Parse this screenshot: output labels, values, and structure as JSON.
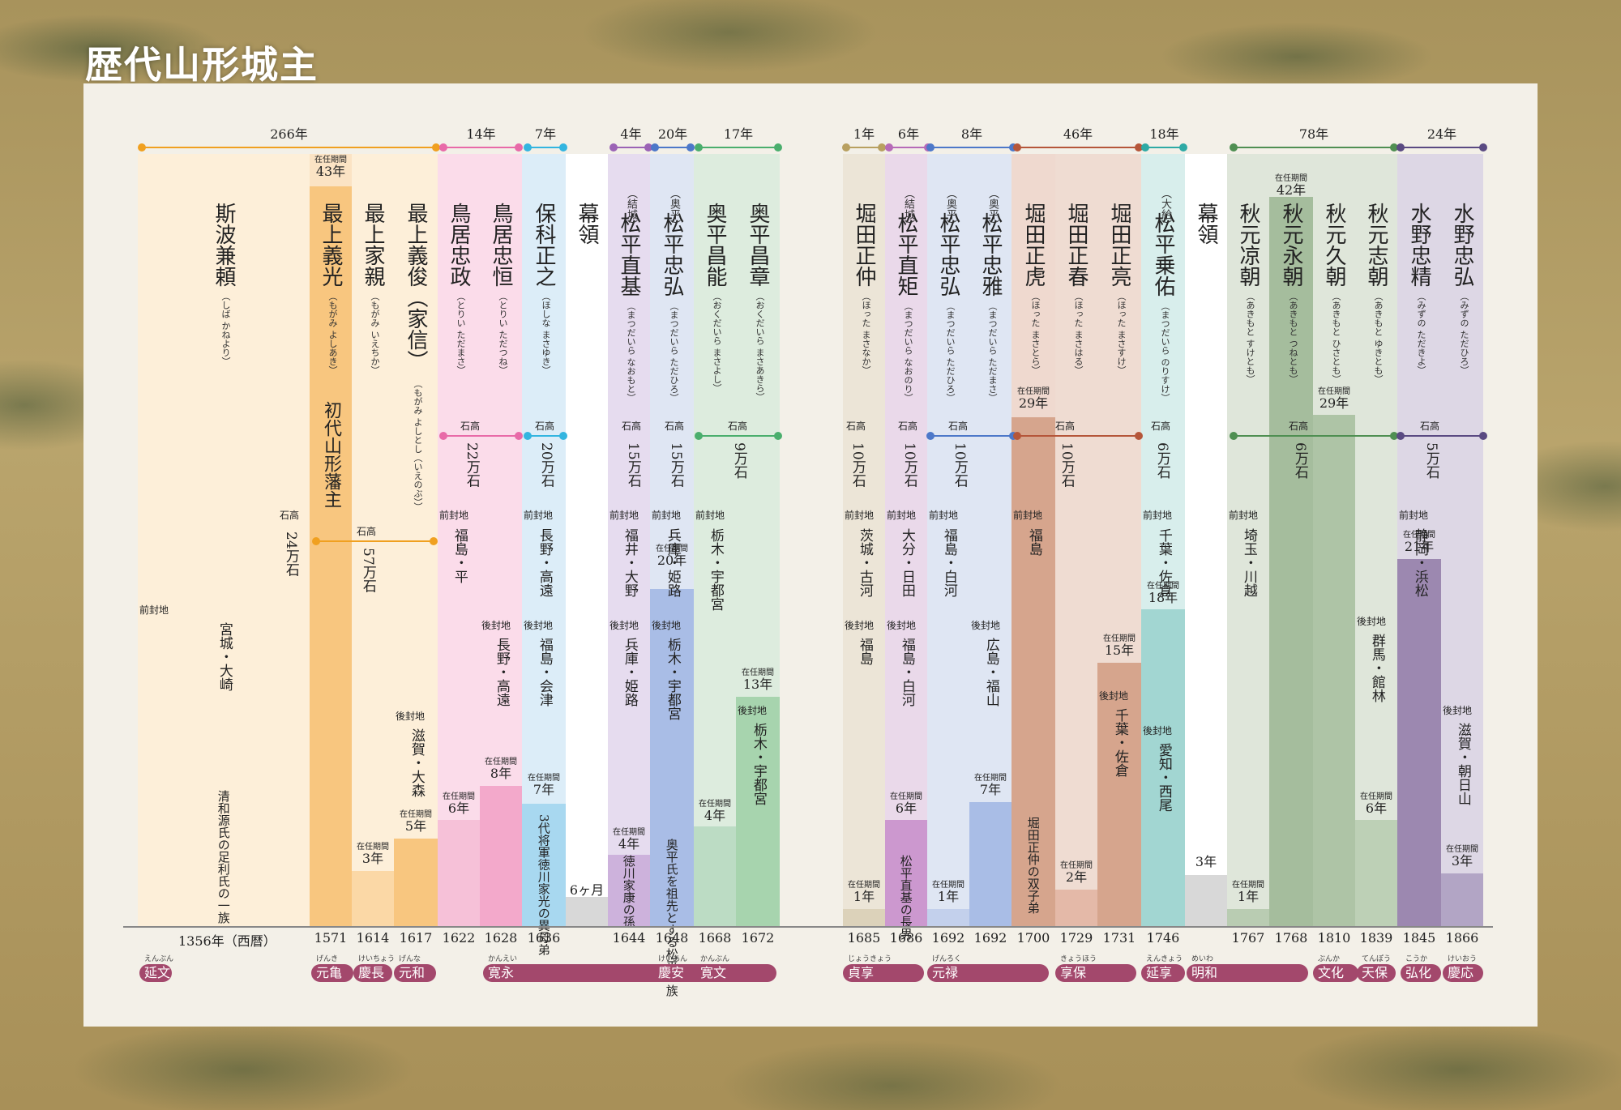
{
  "title": "歴代山形城主",
  "groups": [
    {
      "label": "266年",
      "color": "#f0a020"
    },
    {
      "label": "14年",
      "color": "#e86aa8"
    },
    {
      "label": "7年",
      "color": "#33b5e0"
    },
    {
      "label": "4年",
      "color": "#9b63b5"
    },
    {
      "label": "20年",
      "color": "#4d78c9"
    },
    {
      "label": "17年",
      "color": "#4aae6d"
    },
    {
      "label": "1年",
      "color": "#b8a060"
    },
    {
      "label": "6年",
      "color": "#b66bb8"
    },
    {
      "label": "8年",
      "color": "#4d78c9"
    },
    {
      "label": "46年",
      "color": "#b5563a"
    },
    {
      "label": "18年",
      "color": "#2eaaa5"
    },
    {
      "label": "78年",
      "color": "#4f8f52"
    },
    {
      "label": "24年",
      "color": "#5a4a82"
    }
  ],
  "lords": [
    {
      "name": "斯波兼頼",
      "reading": "（しば かねより）",
      "year": "1356年（西暦）",
      "prev_label": "前封地",
      "prev": "宮城・大崎",
      "note": "清和源氏の足利氏の一族"
    },
    {
      "name": "最上義光",
      "reading": "（もがみ よしあき）",
      "extra": "初代山形藩主",
      "tenure_label": "在任期間",
      "tenure": "43年",
      "year": "1571"
    },
    {
      "name": "最上家親",
      "reading": "（もがみ いえちか）",
      "tenure_label": "在任期間",
      "tenure": "3年",
      "year": "1614"
    },
    {
      "name": "最上義俊（家信）",
      "reading": "（もがみ よしとし（いえのぶ））",
      "tenure_label": "在任期間",
      "tenure": "5年",
      "year": "1617",
      "next_label": "後封地",
      "next": "滋賀・大森"
    },
    {
      "name": "鳥居忠政",
      "reading": "（とりい ただまさ）",
      "tenure_label": "在任期間",
      "tenure": "6年",
      "year": "1622",
      "prev_label": "前封地",
      "prev": "福島・平"
    },
    {
      "name": "鳥居忠恒",
      "reading": "（とりい ただつね）",
      "tenure_label": "在任期間",
      "tenure": "8年",
      "year": "1628",
      "next_label": "後封地",
      "next": "長野・高遠"
    },
    {
      "name": "保科正之",
      "reading": "（ほしな まさゆき）",
      "tenure_label": "在任期間",
      "tenure": "7年",
      "year": "1636",
      "prev_label": "前封地",
      "prev": "長野・高遠",
      "next_label": "後封地",
      "next": "福島・会津",
      "note": "3代将軍徳川家光の異母弟"
    },
    {
      "name": "幕領",
      "tenure": "6ヶ月"
    },
    {
      "name": "松平直基",
      "clan": "（結城）",
      "reading": "（まつだいら なおもと）",
      "tenure_label": "在任期間",
      "tenure": "4年",
      "year": "1644",
      "prev_label": "前封地",
      "prev": "福井・大野",
      "next_label": "後封地",
      "next": "兵庫・姫路",
      "note": "徳川家康の孫"
    },
    {
      "name": "松平忠弘",
      "clan": "（奥平）",
      "reading": "（まつだいら ただひろ）",
      "tenure_label": "在任期間",
      "tenure": "20年",
      "year": "1648",
      "prev_label": "前封地",
      "prev": "兵庫・姫路",
      "next_label": "後封地",
      "next": "栃木・宇都宮",
      "note": "奥平氏を祖先とする松平一族"
    },
    {
      "name": "奥平昌能",
      "reading": "（おくだいら まさよし）",
      "tenure_label": "在任期間",
      "tenure": "4年",
      "year": "1668",
      "prev_label": "前封地",
      "prev": "栃木・宇都宮"
    },
    {
      "name": "奥平昌章",
      "reading": "（おくだいら まさあきら）",
      "tenure_label": "在任期間",
      "tenure": "13年",
      "year": "1672",
      "next_label": "後封地",
      "next": "栃木・宇都宮"
    },
    {
      "name": "堀田正仲",
      "reading": "（ほった まさなか）",
      "tenure_label": "在任期間",
      "tenure": "1年",
      "year": "1685",
      "prev_label": "前封地",
      "prev": "茨城・古河",
      "next_label": "後封地",
      "next": "福島"
    },
    {
      "name": "松平直矩",
      "clan": "（結城）",
      "reading": "（まつだいら なおのり）",
      "tenure_label": "在任期間",
      "tenure": "6年",
      "year": "1686",
      "prev_label": "前封地",
      "prev": "大分・日田",
      "next_label": "後封地",
      "next": "福島・白河",
      "note": "松平直基の長男"
    },
    {
      "name": "松平忠弘",
      "clan": "（奥平）",
      "reading": "（まつだいら ただひろ）",
      "tenure_label": "在任期間",
      "tenure": "1年",
      "year": "1692",
      "prev_label": "前封地",
      "prev": "福島・白河"
    },
    {
      "name": "松平忠雅",
      "clan": "（奥平）",
      "reading": "（まつだいら ただまさ）",
      "tenure_label": "在任期間",
      "tenure": "7年",
      "year": "1692",
      "next_label": "後封地",
      "next": "広島・福山"
    },
    {
      "name": "堀田正虎",
      "reading": "（ほった まさとら）",
      "tenure_label": "在任期間",
      "tenure": "29年",
      "year": "1700",
      "prev_label": "前封地",
      "prev": "福島",
      "note": "堀田正仲の双子弟"
    },
    {
      "name": "堀田正春",
      "reading": "（ほった まさはる）",
      "tenure_label": "在任期間",
      "tenure": "2年",
      "year": "1729"
    },
    {
      "name": "堀田正亮",
      "reading": "（ほった まさすけ）",
      "tenure_label": "在任期間",
      "tenure": "15年",
      "year": "1731",
      "next_label": "後封地",
      "next": "千葉・佐倉"
    },
    {
      "name": "松平乗佑",
      "clan": "（大給）",
      "reading": "（まつだいら のりすけ）",
      "tenure_label": "在任期間",
      "tenure": "18年",
      "year": "1746",
      "prev_label": "前封地",
      "prev": "千葉・佐倉",
      "next_label": "後封地",
      "next": "愛知・西尾"
    },
    {
      "name": "幕領",
      "tenure": "3年"
    },
    {
      "name": "秋元凉朝",
      "reading": "（あきもと すけとも）",
      "tenure_label": "在任期間",
      "tenure": "1年",
      "year": "1767",
      "prev_label": "前封地",
      "prev": "埼玉・川越"
    },
    {
      "name": "秋元永朝",
      "reading": "（あきもと つねとも）",
      "tenure_label": "在任期間",
      "tenure": "42年",
      "year": "1768"
    },
    {
      "name": "秋元久朝",
      "reading": "（あきもと ひさとも）",
      "tenure_label": "在任期間",
      "tenure": "29年",
      "year": "1810"
    },
    {
      "name": "秋元志朝",
      "reading": "（あきもと ゆきとも）",
      "tenure_label": "在任期間",
      "tenure": "6年",
      "year": "1839",
      "next_label": "後封地",
      "next": "群馬・館林"
    },
    {
      "name": "水野忠精",
      "reading": "（みずの ただきよ）",
      "tenure_label": "在任期間",
      "tenure": "21年",
      "year": "1845",
      "prev_label": "前封地",
      "prev": "静岡・浜松"
    },
    {
      "name": "水野忠弘",
      "reading": "（みずの ただひろ）",
      "tenure_label": "在任期間",
      "tenure": "3年",
      "year": "1866",
      "next_label": "後封地",
      "next": "滋賀・朝日山"
    }
  ],
  "kokudaka": [
    {
      "label": "石高",
      "value": "24万石"
    },
    {
      "label": "石高",
      "value": "57万石"
    },
    {
      "label": "石高",
      "value": "22万石"
    },
    {
      "label": "石高",
      "value": "20万石"
    },
    {
      "label": "石高",
      "value": "15万石"
    },
    {
      "label": "石高",
      "value": "15万石"
    },
    {
      "label": "石高",
      "value": "9万石"
    },
    {
      "label": "石高",
      "value": "10万石"
    },
    {
      "label": "石高",
      "value": "10万石"
    },
    {
      "label": "石高",
      "value": "10万石"
    },
    {
      "label": "石高",
      "value": "10万石"
    },
    {
      "label": "石高",
      "value": "6万石"
    },
    {
      "label": "石高",
      "value": "6万石"
    },
    {
      "label": "石高",
      "value": "5万石"
    }
  ],
  "eras": [
    {
      "name": "延文",
      "reading": "えんぶん"
    },
    {
      "name": "元亀",
      "reading": "げんき"
    },
    {
      "name": "慶長",
      "reading": "けいちょう"
    },
    {
      "name": "元和",
      "reading": "げんな"
    },
    {
      "name": "寛永",
      "reading": "かんえい"
    },
    {
      "name": "慶安",
      "reading": "けいあん"
    },
    {
      "name": "寛文",
      "reading": "かんぶん"
    },
    {
      "name": "貞享",
      "reading": "じょうきょう"
    },
    {
      "name": "元禄",
      "reading": "げんろく"
    },
    {
      "name": "享保",
      "reading": "きょうほう"
    },
    {
      "name": "延享",
      "reading": "えんきょう"
    },
    {
      "name": "明和",
      "reading": "めいわ"
    },
    {
      "name": "文化",
      "reading": "ぶんか"
    },
    {
      "name": "天保",
      "reading": "てんぽう"
    },
    {
      "name": "弘化",
      "reading": "こうか"
    },
    {
      "name": "慶応",
      "reading": "けいおう"
    }
  ]
}
